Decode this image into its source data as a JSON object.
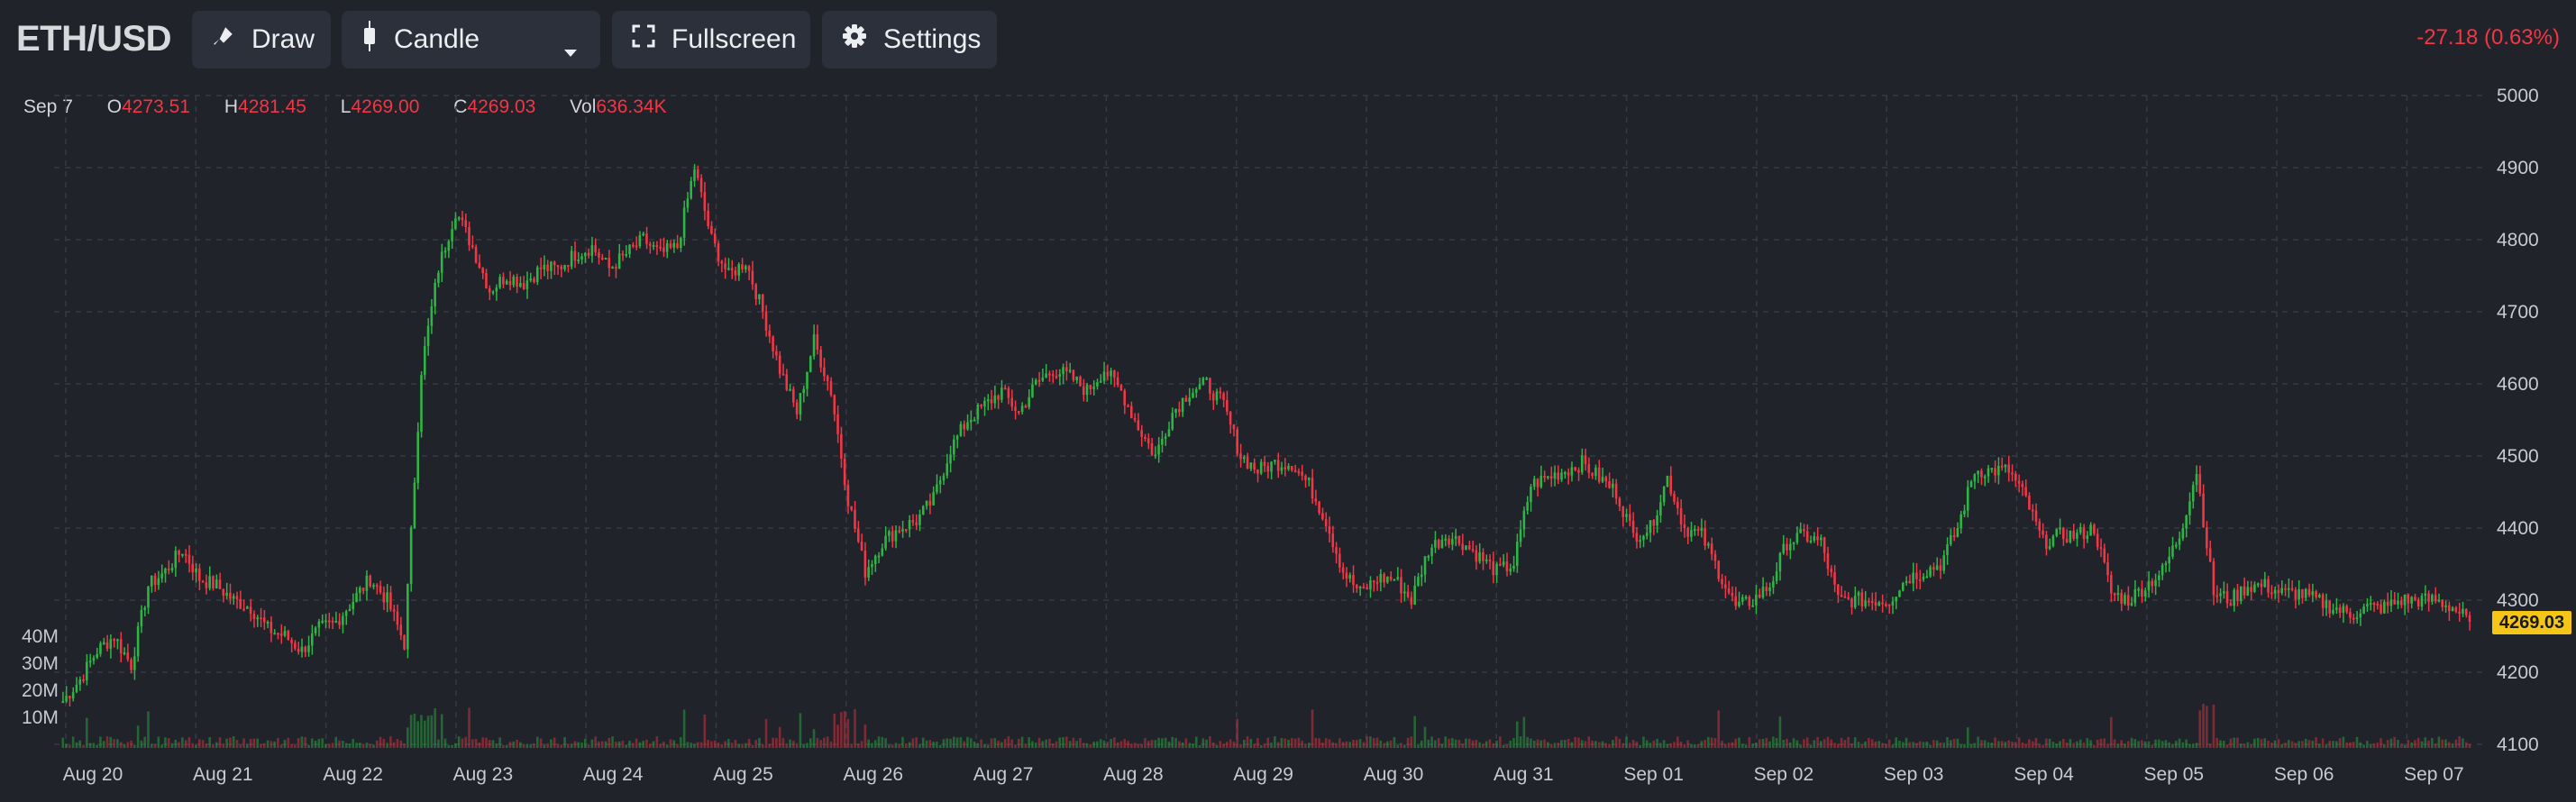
{
  "toolbar": {
    "pair": "ETH/USD",
    "draw_label": "Draw",
    "chart_type_label": "Candle",
    "fullscreen_label": "Fullscreen",
    "settings_label": "Settings",
    "change_text": "-27.18 (0.63%)"
  },
  "legend": {
    "date": "Sep 7",
    "open_key": "O",
    "open": "4273.51",
    "high_key": "H",
    "high": "4281.45",
    "low_key": "L",
    "low": "4269.00",
    "close_key": "C",
    "close": "4269.03",
    "vol_key": "Vol",
    "vol": "636.34K"
  },
  "last_price_tag": "4269.03",
  "colors": {
    "background": "#202329",
    "up": "#2fb546",
    "down": "#f23645",
    "grid": "#363a45",
    "tag": "#f5c518"
  },
  "icons": {
    "draw": "brush-icon",
    "candle": "candlestick-icon",
    "dropdown": "chevron-down-icon",
    "fullscreen": "fullscreen-icon",
    "settings": "gear-icon"
  },
  "chart_data": {
    "type": "candlestick",
    "price_ticks": [
      5000,
      4900,
      4800,
      4700,
      4600,
      4500,
      4400,
      4300,
      4200,
      4100
    ],
    "price_range": [
      4100,
      5000
    ],
    "volume_ticks": [
      "40M",
      "30M",
      "20M",
      "10M"
    ],
    "date_labels": [
      "Aug 20",
      "Aug 21",
      "Aug 22",
      "Aug 23",
      "Aug 24",
      "Aug 25",
      "Aug 26",
      "Aug 27",
      "Aug 28",
      "Aug 29",
      "Aug 30",
      "Aug 31",
      "Sep 01",
      "Sep 02",
      "Sep 03",
      "Sep 04",
      "Sep 05",
      "Sep 06",
      "Sep 07"
    ],
    "approx_close_path": [
      [
        0,
        4160
      ],
      [
        1,
        4190
      ],
      [
        2,
        4230
      ],
      [
        3,
        4250
      ],
      [
        4,
        4210
      ],
      [
        5,
        4320
      ],
      [
        6,
        4340
      ],
      [
        7,
        4370
      ],
      [
        8,
        4330
      ],
      [
        9,
        4320
      ],
      [
        10,
        4300
      ],
      [
        11,
        4290
      ],
      [
        12,
        4260
      ],
      [
        13,
        4250
      ],
      [
        14,
        4230
      ],
      [
        15,
        4260
      ],
      [
        16,
        4270
      ],
      [
        17,
        4300
      ],
      [
        18,
        4330
      ],
      [
        19,
        4300
      ],
      [
        20,
        4240
      ],
      [
        21,
        4620
      ],
      [
        22,
        4760
      ],
      [
        23,
        4840
      ],
      [
        24,
        4790
      ],
      [
        25,
        4730
      ],
      [
        26,
        4750
      ],
      [
        27,
        4740
      ],
      [
        28,
        4760
      ],
      [
        29,
        4760
      ],
      [
        30,
        4780
      ],
      [
        31,
        4790
      ],
      [
        32,
        4760
      ],
      [
        33,
        4780
      ],
      [
        34,
        4800
      ],
      [
        35,
        4780
      ],
      [
        36,
        4790
      ],
      [
        37,
        4900
      ],
      [
        38,
        4800
      ],
      [
        39,
        4750
      ],
      [
        40,
        4770
      ],
      [
        41,
        4700
      ],
      [
        42,
        4620
      ],
      [
        43,
        4560
      ],
      [
        44,
        4660
      ],
      [
        45,
        4590
      ],
      [
        46,
        4440
      ],
      [
        47,
        4340
      ],
      [
        48,
        4380
      ],
      [
        49,
        4400
      ],
      [
        50,
        4410
      ],
      [
        51,
        4440
      ],
      [
        52,
        4510
      ],
      [
        53,
        4550
      ],
      [
        54,
        4570
      ],
      [
        55,
        4590
      ],
      [
        56,
        4560
      ],
      [
        57,
        4600
      ],
      [
        58,
        4620
      ],
      [
        59,
        4610
      ],
      [
        60,
        4590
      ],
      [
        61,
        4620
      ],
      [
        62,
        4590
      ],
      [
        63,
        4540
      ],
      [
        64,
        4500
      ],
      [
        65,
        4560
      ],
      [
        66,
        4590
      ],
      [
        67,
        4600
      ],
      [
        68,
        4570
      ],
      [
        69,
        4500
      ],
      [
        70,
        4480
      ],
      [
        71,
        4490
      ],
      [
        72,
        4490
      ],
      [
        73,
        4460
      ],
      [
        74,
        4410
      ],
      [
        75,
        4340
      ],
      [
        76,
        4310
      ],
      [
        77,
        4330
      ],
      [
        78,
        4330
      ],
      [
        79,
        4300
      ],
      [
        80,
        4370
      ],
      [
        81,
        4390
      ],
      [
        82,
        4380
      ],
      [
        83,
        4360
      ],
      [
        84,
        4340
      ],
      [
        85,
        4350
      ],
      [
        86,
        4460
      ],
      [
        87,
        4470
      ],
      [
        88,
        4480
      ],
      [
        89,
        4490
      ],
      [
        90,
        4470
      ],
      [
        91,
        4450
      ],
      [
        92,
        4390
      ],
      [
        93,
        4400
      ],
      [
        94,
        4470
      ],
      [
        95,
        4400
      ],
      [
        96,
        4390
      ],
      [
        97,
        4340
      ],
      [
        98,
        4290
      ],
      [
        99,
        4300
      ],
      [
        100,
        4320
      ],
      [
        101,
        4380
      ],
      [
        102,
        4390
      ],
      [
        103,
        4380
      ],
      [
        104,
        4300
      ],
      [
        105,
        4300
      ],
      [
        106,
        4300
      ],
      [
        107,
        4300
      ],
      [
        108,
        4330
      ],
      [
        109,
        4340
      ],
      [
        110,
        4350
      ],
      [
        111,
        4400
      ],
      [
        112,
        4480
      ],
      [
        113,
        4480
      ],
      [
        114,
        4480
      ],
      [
        115,
        4440
      ],
      [
        116,
        4380
      ],
      [
        117,
        4390
      ],
      [
        118,
        4390
      ],
      [
        119,
        4400
      ],
      [
        120,
        4310
      ],
      [
        121,
        4300
      ],
      [
        122,
        4320
      ],
      [
        123,
        4340
      ],
      [
        124,
        4390
      ],
      [
        125,
        4480
      ],
      [
        126,
        4310
      ],
      [
        127,
        4300
      ],
      [
        128,
        4320
      ],
      [
        129,
        4320
      ],
      [
        130,
        4310
      ],
      [
        131,
        4310
      ],
      [
        132,
        4300
      ],
      [
        133,
        4290
      ],
      [
        134,
        4280
      ],
      [
        135,
        4290
      ],
      [
        136,
        4290
      ],
      [
        137,
        4300
      ],
      [
        138,
        4300
      ],
      [
        139,
        4300
      ],
      [
        140,
        4290
      ],
      [
        141,
        4270
      ]
    ]
  }
}
